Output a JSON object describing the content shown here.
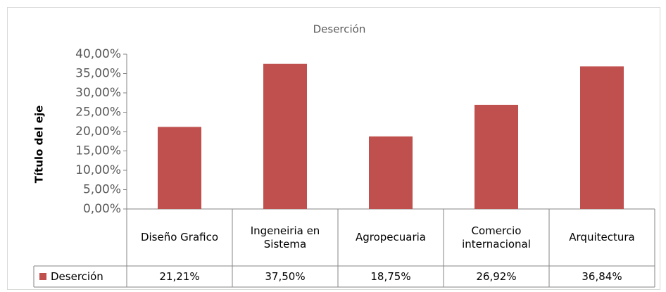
{
  "chart_data": {
    "type": "bar",
    "title": "Deserción",
    "ylabel": "Título del eje",
    "categories": [
      "Diseño Grafico",
      "Ingeneiria en Sistema",
      "Agropecuaria",
      "Comercio internacional",
      "Arquitectura"
    ],
    "series": [
      {
        "name": "Deserción",
        "color": "#c0504d",
        "values": [
          21.21,
          37.5,
          18.75,
          26.92,
          36.84
        ],
        "value_labels": [
          "21,21%",
          "37,50%",
          "18,75%",
          "26,92%",
          "36,84%"
        ]
      }
    ],
    "ylim": [
      0,
      40
    ],
    "yticks": [
      {
        "value": 0,
        "label": "0,00%"
      },
      {
        "value": 5,
        "label": "5,00%"
      },
      {
        "value": 10,
        "label": "10,00%"
      },
      {
        "value": 15,
        "label": "15,00%"
      },
      {
        "value": 20,
        "label": "20,00%"
      },
      {
        "value": 25,
        "label": "25,00%"
      },
      {
        "value": 30,
        "label": "30,00%"
      },
      {
        "value": 35,
        "label": "35,00%"
      },
      {
        "value": 40,
        "label": "40,00%"
      }
    ],
    "grid": false
  }
}
